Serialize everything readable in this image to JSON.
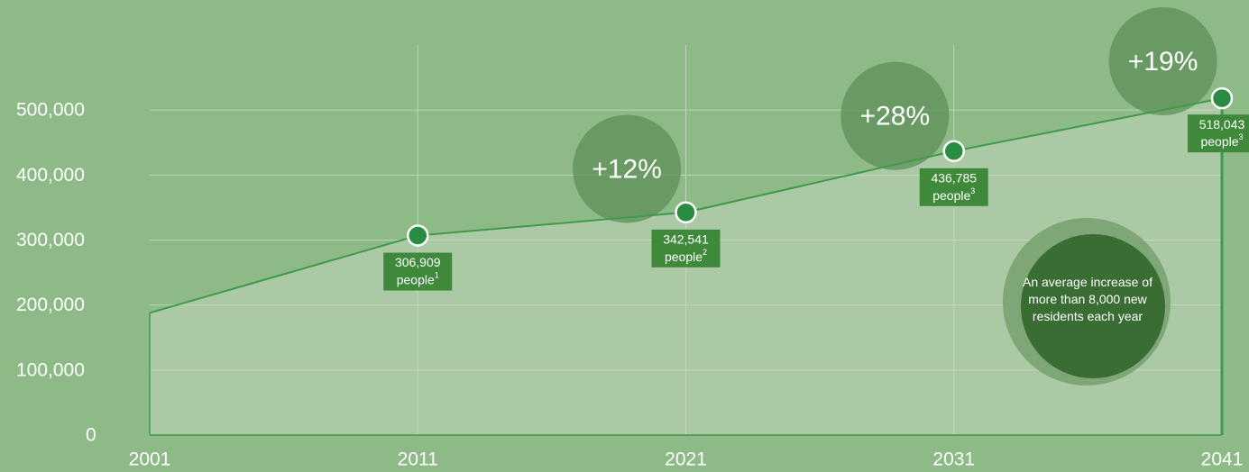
{
  "chart_data": {
    "type": "area",
    "x": [
      2001,
      2011,
      2021,
      2031,
      2041
    ],
    "values": [
      188000,
      306909,
      342541,
      436785,
      518043
    ],
    "value_labels": [
      null,
      "306,909",
      "342,541",
      "436,785",
      "518,043"
    ],
    "value_captions": [
      null,
      "people",
      "people",
      "people",
      "people"
    ],
    "value_notes": [
      null,
      "1",
      "2",
      "3",
      "3"
    ],
    "growth_labels": [
      "+12%",
      "+28%",
      "+19%"
    ],
    "annotation": "An average increase of more than 8,000 new residents each year",
    "xlim": [
      2001,
      2041
    ],
    "xticks": [
      2001,
      2011,
      2021,
      2031,
      2041
    ],
    "ylim": [
      0,
      600000
    ],
    "yticks": [
      0,
      {
        "value": 100000,
        "label": "100,000"
      },
      {
        "value": 200000,
        "label": "200,000"
      },
      {
        "value": 300000,
        "label": "300,000"
      },
      {
        "value": 400000,
        "label": "400,000"
      },
      {
        "value": 500000,
        "label": "500,000"
      }
    ],
    "color": "#3f9a4c",
    "grid": true
  }
}
